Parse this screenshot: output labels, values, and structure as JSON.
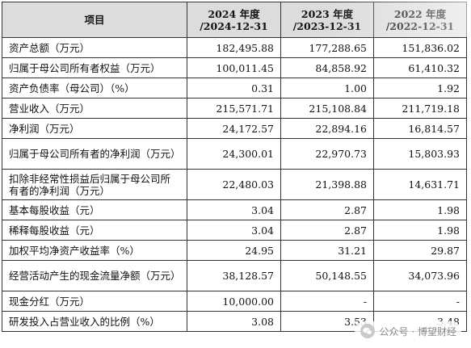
{
  "table": {
    "headers": {
      "item": "项目",
      "col1": {
        "year": "2024 年度",
        "date": "/2024-12-31"
      },
      "col2": {
        "year": "2023 年度",
        "date": "/2023-12-31"
      },
      "col3": {
        "year": "2022 年度",
        "date": "/2022-12-31"
      }
    },
    "rows": [
      {
        "label": "资产总额（万元）",
        "v1": "182,495.88",
        "v2": "177,288.65",
        "v3": "151,836.02"
      },
      {
        "label": "归属于母公司所有者权益（万元）",
        "v1": "100,011.45",
        "v2": "84,858.92",
        "v3": "61,410.32"
      },
      {
        "label": "资产负债率（母公司）（%）",
        "v1": "0.31",
        "v2": "1.00",
        "v3": "1.92"
      },
      {
        "label": "营业收入（万元）",
        "v1": "215,571.71",
        "v2": "215,108.84",
        "v3": "211,719.18"
      },
      {
        "label": "净利润（万元）",
        "v1": "24,172.57",
        "v2": "22,894.16",
        "v3": "16,814.57"
      },
      {
        "label": "归属于母公司所有者的净利润（万元）",
        "v1": "24,300.01",
        "v2": "22,970.73",
        "v3": "15,803.93"
      },
      {
        "label": "扣除非经常性损益后归属于母公司所有者的净利润（万元）",
        "v1": "22,480.03",
        "v2": "21,398.88",
        "v3": "14,631.71"
      },
      {
        "label": "基本每股收益（元）",
        "v1": "3.04",
        "v2": "2.87",
        "v3": "1.98"
      },
      {
        "label": "稀释每股收益（元）",
        "v1": "3.04",
        "v2": "2.87",
        "v3": "1.98"
      },
      {
        "label": "加权平均净资产收益率（%）",
        "v1": "24.95",
        "v2": "31.21",
        "v3": "29.87"
      },
      {
        "label": "经营活动产生的现金流量净额（万元）",
        "v1": "38,128.57",
        "v2": "50,148.55",
        "v3": "34,073.96"
      },
      {
        "label": "现金分红（万元）",
        "v1": "10,000.00",
        "v2": "-",
        "v3": "-"
      },
      {
        "label": "研发投入占营业收入的比例（%）",
        "v1": "3.08",
        "v2": "3.53",
        "v3": "3.48"
      }
    ]
  },
  "watermark": {
    "text": "公众号 · 博望财经",
    "icon": "wechat-icon"
  },
  "colors": {
    "header_bg": "#dcdcdc",
    "border": "#333333"
  }
}
